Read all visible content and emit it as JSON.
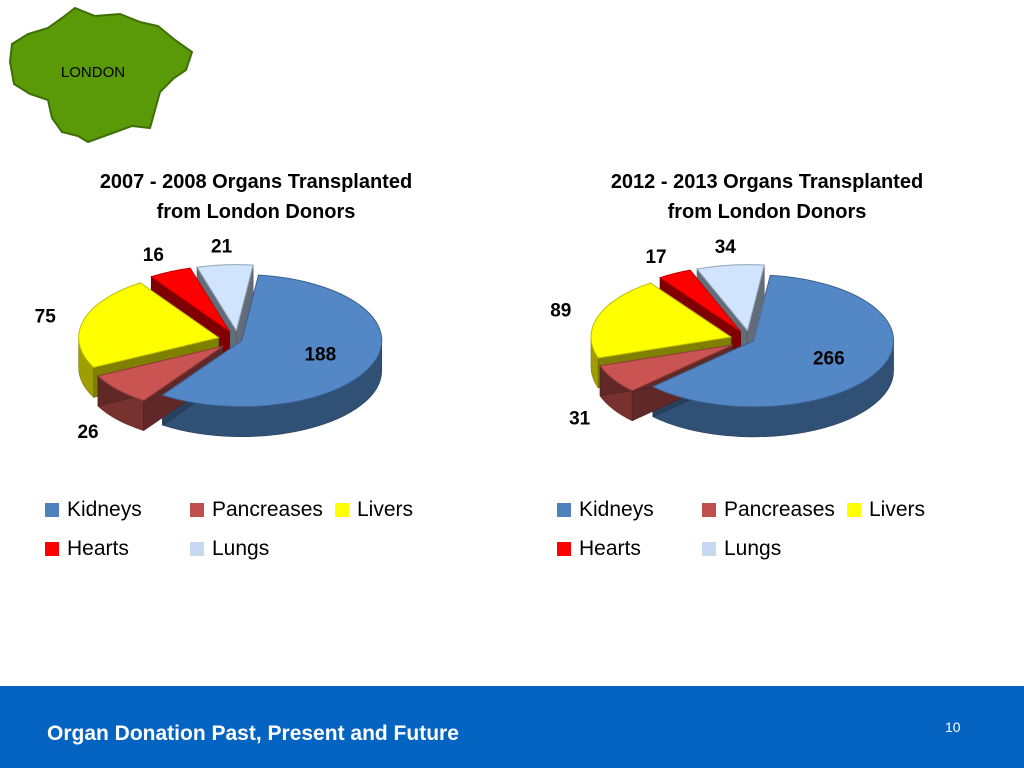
{
  "map": {
    "label": "LONDON",
    "fill": "#5a9a08",
    "stroke": "#3f6e05"
  },
  "footer": {
    "title": "Organ Donation Past, Present and Future",
    "slide_number": "10",
    "background": "#0563c1"
  },
  "colors": {
    "Kidneys": "#4f81bd",
    "Pancreases": "#c0504d",
    "Livers": "#ffff00",
    "Hearts": "#ff0000",
    "Lungs": "#c6d9f1"
  },
  "chart_data": [
    {
      "type": "pie",
      "title_line1": "2007 - 2008 Organs Transplanted",
      "title_line2": "from London Donors",
      "categories": [
        "Kidneys",
        "Pancreases",
        "Livers",
        "Hearts",
        "Lungs"
      ],
      "values": [
        188,
        26,
        75,
        16,
        21
      ],
      "labels": [
        "188",
        "26",
        "75",
        "16",
        "21"
      ],
      "legend_position": "bottom",
      "exploded": true,
      "style": "3d"
    },
    {
      "type": "pie",
      "title_line1": "2012 - 2013 Organs Transplanted",
      "title_line2": "from London Donors",
      "categories": [
        "Kidneys",
        "Pancreases",
        "Livers",
        "Hearts",
        "Lungs"
      ],
      "values": [
        266,
        31,
        89,
        17,
        34
      ],
      "labels": [
        "266",
        "31",
        "89",
        "17",
        "34"
      ],
      "legend_position": "bottom",
      "exploded": true,
      "style": "3d"
    }
  ]
}
